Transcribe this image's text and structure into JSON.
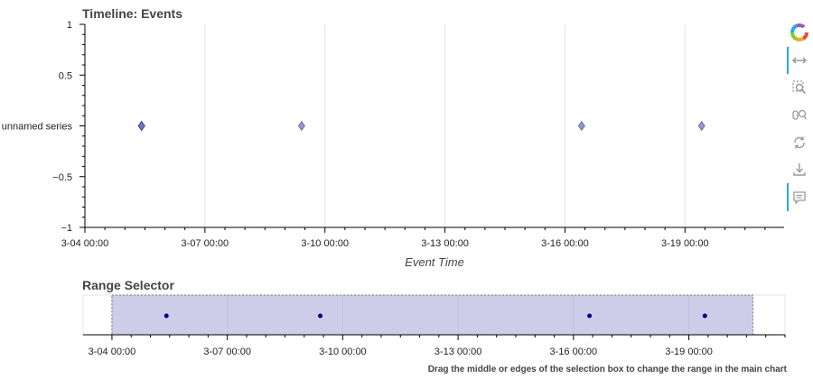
{
  "main_chart": {
    "title": "Timeline: Events",
    "xlabel": "Event Time"
  },
  "range_selector": {
    "title": "Range Selector",
    "footnote": "Drag the middle or edges of the selection box to change the range in the main chart"
  },
  "toolbar": {
    "items": [
      "logo-icon",
      "pan-icon",
      "box-zoom-icon",
      "wheel-zoom-icon",
      "reset-icon",
      "save-icon",
      "help-icon"
    ],
    "accent_color": "#26aae1"
  },
  "chart_data": [
    {
      "type": "scatter",
      "title": "Timeline: Events",
      "xlabel": "Event Time",
      "ylabel": "",
      "x_ticks": [
        "3-04 00:00",
        "3-07 00:00",
        "3-10 00:00",
        "3-13 00:00",
        "3-16 00:00",
        "3-19 00:00"
      ],
      "y_ticks": [
        "1",
        "0.5",
        "unnamed series",
        "−0.5",
        "−1"
      ],
      "xlim": [
        "2024-03-04 00:00",
        "2024-03-21 12:00"
      ],
      "ylim": [
        -1,
        1
      ],
      "grid": "vertical",
      "series": [
        {
          "marker": "diamond",
          "color": "#5a5fae",
          "points": [
            {
              "x": "2024-03-05 10:00",
              "y": 0
            },
            {
              "x": "2024-03-09 10:00",
              "y": 0
            },
            {
              "x": "2024-03-16 10:00",
              "y": 0
            },
            {
              "x": "2024-03-19 10:00",
              "y": 0
            }
          ]
        }
      ]
    },
    {
      "type": "scatter",
      "title": "Range Selector",
      "x_ticks": [
        "3-04 00:00",
        "3-07 00:00",
        "3-10 00:00",
        "3-13 00:00",
        "3-16 00:00",
        "3-19 00:00"
      ],
      "xlim": [
        "2024-03-03 06:00",
        "2024-03-21 12:00"
      ],
      "selection": [
        "2024-03-04 00:00",
        "2024-03-20 16:00"
      ],
      "grid": "vertical",
      "series": [
        {
          "marker": "circle",
          "color": "#00008b",
          "points": [
            {
              "x": "2024-03-05 10:00",
              "y": 0
            },
            {
              "x": "2024-03-09 10:00",
              "y": 0
            },
            {
              "x": "2024-03-16 10:00",
              "y": 0
            },
            {
              "x": "2024-03-19 10:00",
              "y": 0
            }
          ]
        }
      ]
    }
  ]
}
